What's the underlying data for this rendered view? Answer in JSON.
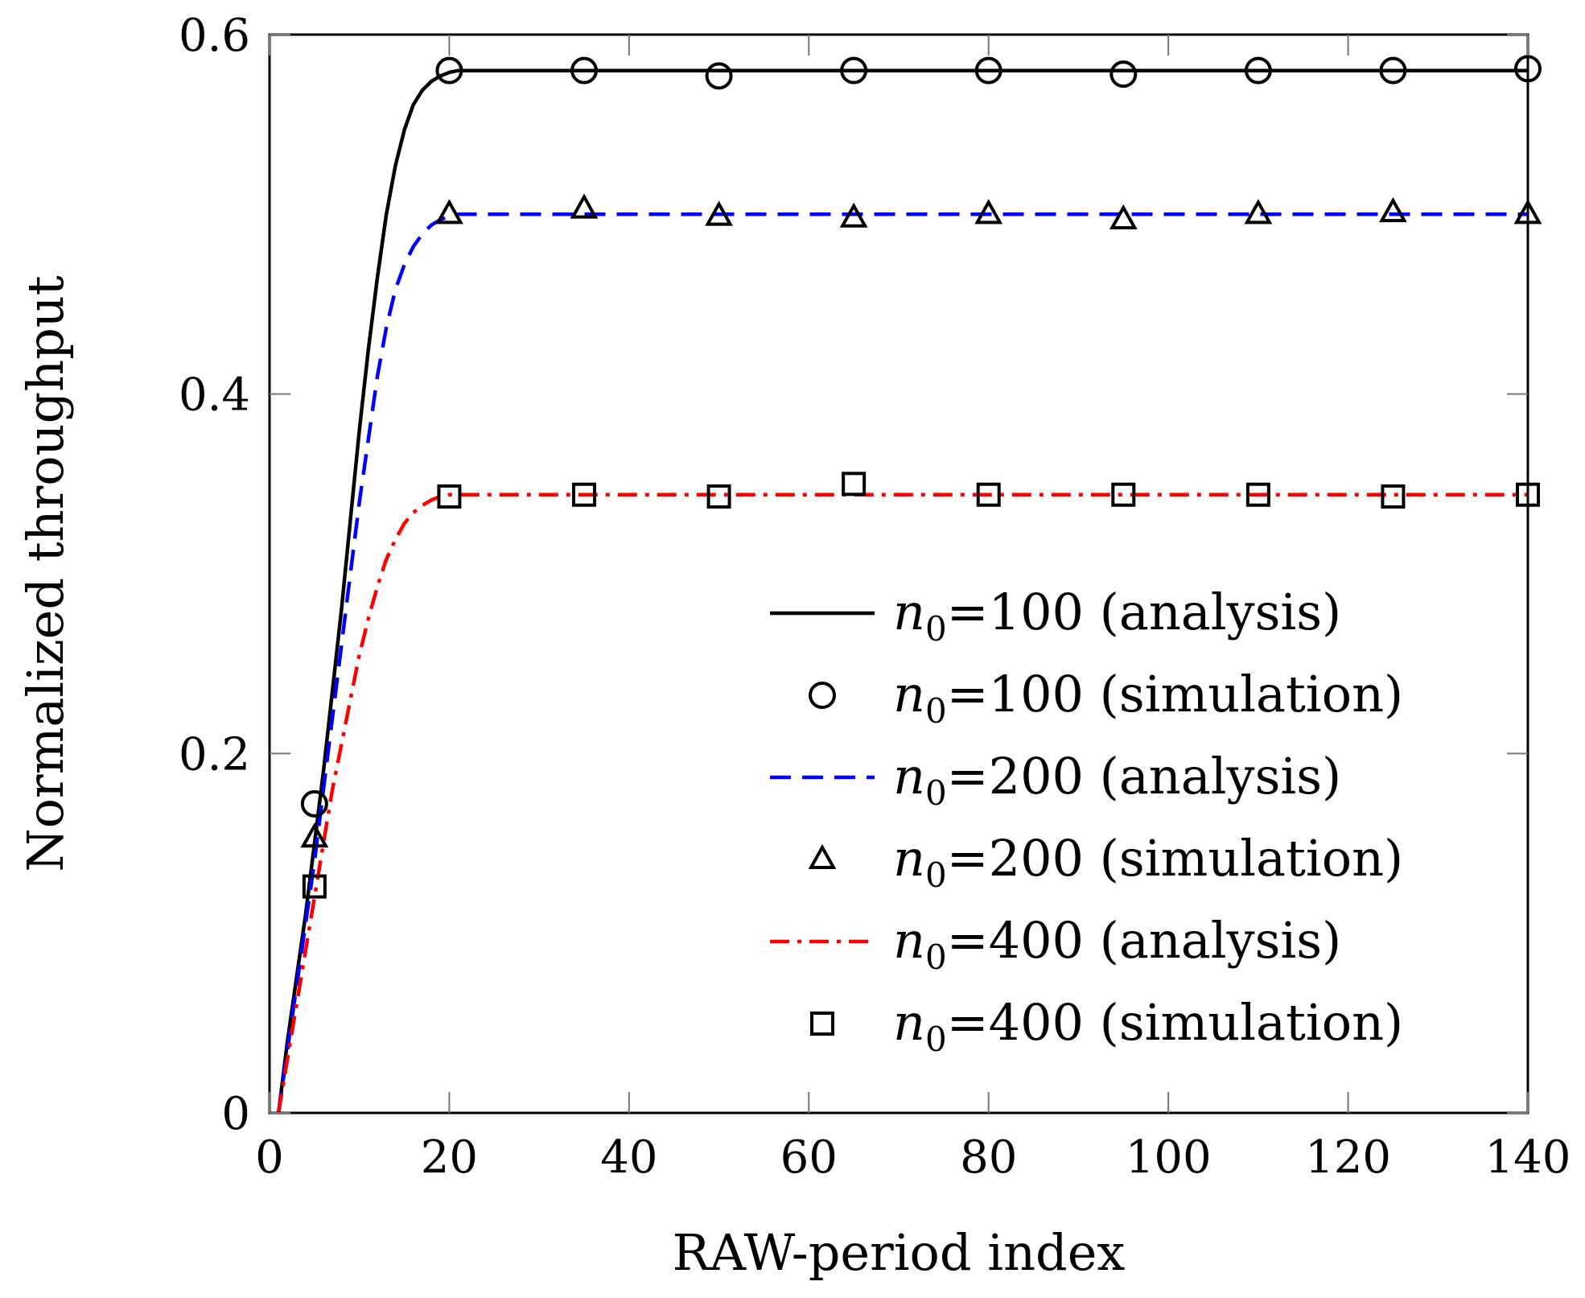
{
  "chart_data": {
    "type": "line",
    "xlabel": "RAW-period index",
    "ylabel": "Normalized throughput",
    "xlim": [
      0,
      140
    ],
    "ylim": [
      0,
      0.6
    ],
    "xticks": [
      0,
      20,
      40,
      60,
      80,
      100,
      120,
      140
    ],
    "xtick_labels": [
      "0",
      "20",
      "40",
      "60",
      "80",
      "100",
      "120",
      "140"
    ],
    "yticks": [
      0,
      0.2,
      0.4,
      0.6
    ],
    "ytick_labels": [
      "0",
      "0.2",
      "0.4",
      "0.6"
    ],
    "grid": false,
    "legend_position": "bottom-right",
    "series": [
      {
        "name": "n0=100 (analysis)",
        "legend_var": "n",
        "legend_sub": "0",
        "legend_rest": "=100 (analysis)",
        "kind": "line",
        "style": "solid",
        "color": "#000000",
        "x": [
          1,
          2,
          3,
          4,
          5,
          6,
          7,
          8,
          9,
          10,
          11,
          12,
          13,
          14,
          15,
          16,
          17,
          18,
          19,
          20,
          21,
          22,
          23,
          24,
          25,
          30,
          40,
          60,
          80,
          100,
          120,
          140
        ],
        "y": [
          0.0,
          0.04,
          0.075,
          0.11,
          0.15,
          0.19,
          0.235,
          0.28,
          0.33,
          0.38,
          0.425,
          0.465,
          0.5,
          0.527,
          0.547,
          0.561,
          0.569,
          0.574,
          0.577,
          0.579,
          0.58,
          0.58,
          0.58,
          0.58,
          0.58,
          0.58,
          0.58,
          0.58,
          0.58,
          0.58,
          0.58,
          0.58
        ]
      },
      {
        "name": "n0=100 (simulation)",
        "legend_var": "n",
        "legend_sub": "0",
        "legend_rest": "=100 (simulation)",
        "kind": "marker",
        "marker": "circle",
        "color": "#000000",
        "x": [
          5,
          20,
          35,
          50,
          65,
          80,
          95,
          110,
          125,
          140
        ],
        "y": [
          0.172,
          0.58,
          0.58,
          0.577,
          0.58,
          0.58,
          0.578,
          0.58,
          0.58,
          0.581
        ]
      },
      {
        "name": "n0=200 (analysis)",
        "legend_var": "n",
        "legend_sub": "0",
        "legend_rest": "=200 (analysis)",
        "kind": "line",
        "style": "dashed",
        "color": "#0000ff",
        "x": [
          1,
          2,
          3,
          4,
          5,
          6,
          7,
          8,
          9,
          10,
          11,
          12,
          13,
          14,
          15,
          16,
          17,
          18,
          19,
          20,
          21,
          22,
          25,
          30,
          40,
          60,
          80,
          100,
          120,
          140
        ],
        "y": [
          0.0,
          0.035,
          0.07,
          0.105,
          0.14,
          0.18,
          0.22,
          0.26,
          0.3,
          0.34,
          0.375,
          0.41,
          0.437,
          0.458,
          0.472,
          0.482,
          0.489,
          0.494,
          0.497,
          0.499,
          0.5,
          0.5,
          0.5,
          0.5,
          0.5,
          0.5,
          0.5,
          0.5,
          0.5,
          0.5
        ]
      },
      {
        "name": "n0=200 (simulation)",
        "legend_var": "n",
        "legend_sub": "0",
        "legend_rest": "=200 (simulation)",
        "kind": "marker",
        "marker": "triangle",
        "color": "#000000",
        "x": [
          5,
          20,
          35,
          50,
          65,
          80,
          95,
          110,
          125,
          140
        ],
        "y": [
          0.153,
          0.5,
          0.503,
          0.499,
          0.498,
          0.5,
          0.497,
          0.5,
          0.501,
          0.5
        ]
      },
      {
        "name": "n0=400 (analysis)",
        "legend_var": "n",
        "legend_sub": "0",
        "legend_rest": "=400 (analysis)",
        "kind": "line",
        "style": "dashdot",
        "color": "#ff0000",
        "x": [
          1,
          2,
          3,
          4,
          5,
          6,
          7,
          8,
          9,
          10,
          11,
          12,
          13,
          14,
          15,
          16,
          17,
          18,
          19,
          20,
          22,
          25,
          30,
          40,
          60,
          80,
          100,
          120,
          140
        ],
        "y": [
          0.0,
          0.03,
          0.06,
          0.09,
          0.12,
          0.15,
          0.18,
          0.205,
          0.23,
          0.255,
          0.275,
          0.293,
          0.308,
          0.319,
          0.328,
          0.334,
          0.338,
          0.341,
          0.343,
          0.344,
          0.344,
          0.344,
          0.344,
          0.344,
          0.344,
          0.344,
          0.344,
          0.344,
          0.344
        ]
      },
      {
        "name": "n0=400 (simulation)",
        "legend_var": "n",
        "legend_sub": "0",
        "legend_rest": "=400 (simulation)",
        "kind": "marker",
        "marker": "square",
        "color": "#000000",
        "x": [
          5,
          20,
          35,
          50,
          65,
          80,
          95,
          110,
          125,
          140
        ],
        "y": [
          0.126,
          0.343,
          0.344,
          0.343,
          0.35,
          0.344,
          0.344,
          0.344,
          0.343,
          0.344
        ]
      }
    ]
  }
}
